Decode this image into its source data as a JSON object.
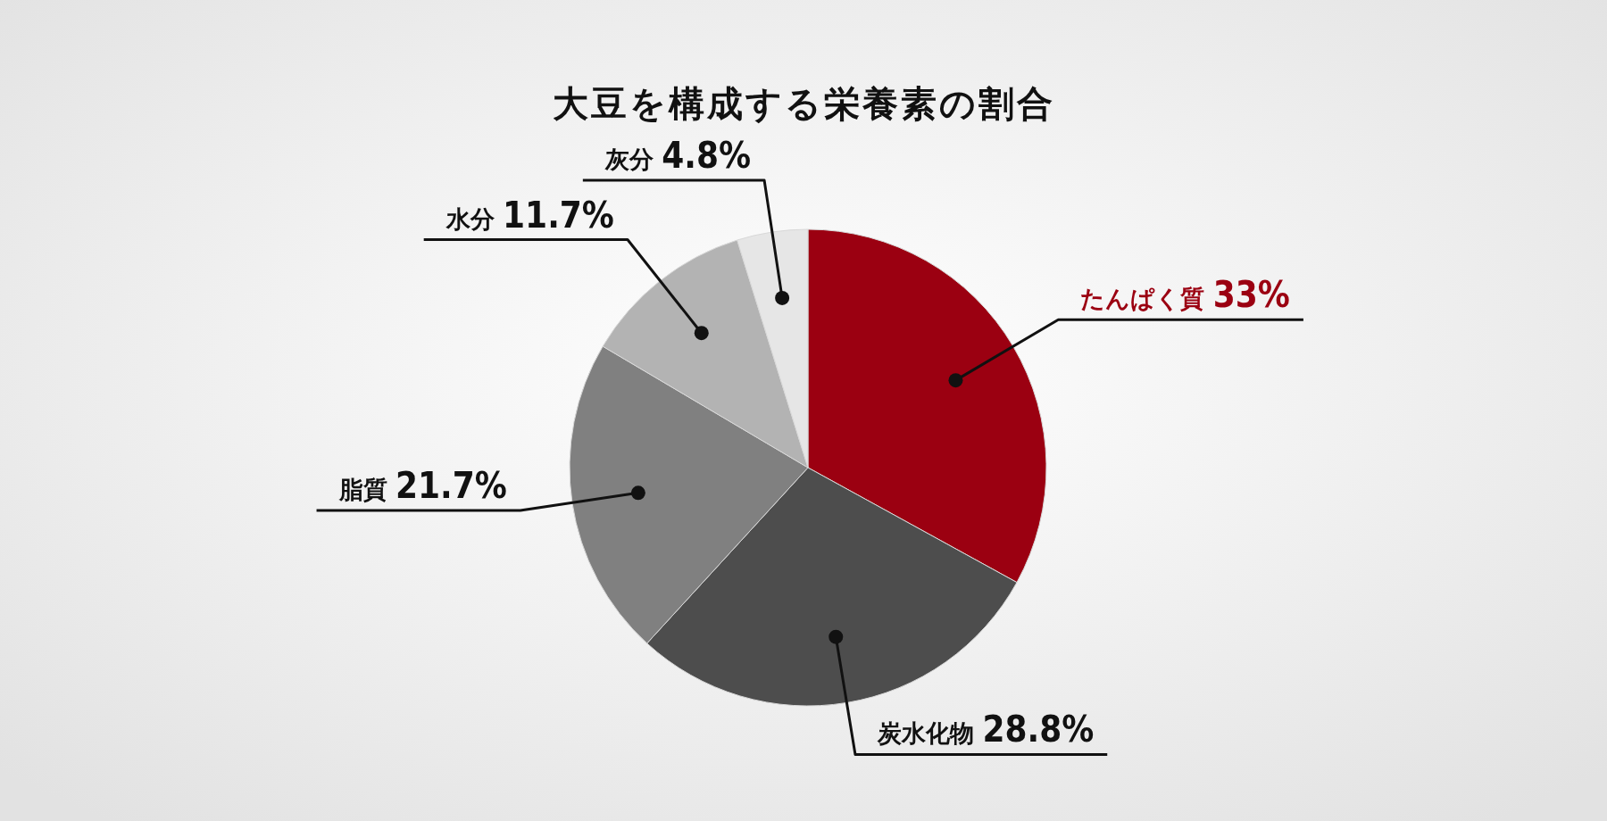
{
  "chart_data": {
    "type": "pie",
    "title": "大豆を構成する栄養素の割合",
    "categories": [
      "たんぱく質",
      "炭水化物",
      "脂質",
      "水分",
      "灰分"
    ],
    "values": [
      33,
      28.8,
      21.7,
      11.7,
      4.8
    ],
    "value_labels": [
      "33%",
      "28.8%",
      "21.7%",
      "11.7%",
      "4.8%"
    ],
    "colors": [
      "#9b0011",
      "#4d4d4d",
      "#808080",
      "#b3b3b3",
      "#e6e6e6"
    ]
  }
}
